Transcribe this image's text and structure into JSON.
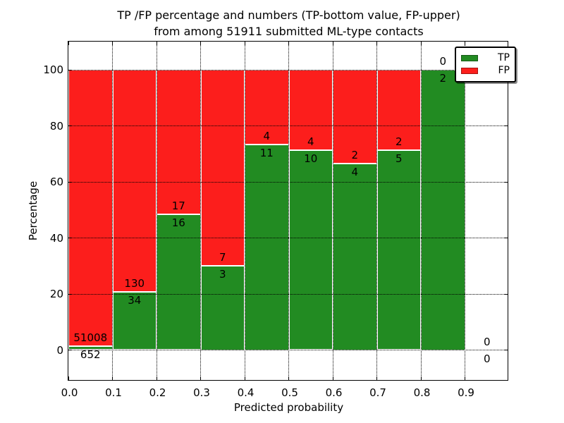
{
  "title": {
    "line1": "TP /FP percentage and numbers (TP-bottom value, FP-upper)",
    "line2": "from among 51911 submitted ML-type contacts"
  },
  "chart_data": {
    "type": "bar",
    "stacked": true,
    "normalized_to_percent": true,
    "title": "TP /FP percentage and numbers (TP-bottom value, FP-upper) from among 51911 submitted ML-type contacts",
    "xlabel": "Predicted probability",
    "ylabel": "Percentage",
    "total_submitted": 51911,
    "x_tick_labels": [
      "0.0",
      "0.1",
      "0.2",
      "0.3",
      "0.4",
      "0.5",
      "0.6",
      "0.7",
      "0.8",
      "0.9"
    ],
    "y_ticks": [
      0,
      20,
      40,
      60,
      80,
      100
    ],
    "y_tick_labels": [
      "0",
      "20",
      "40",
      "60",
      "80",
      "100"
    ],
    "xlim": [
      0.0,
      1.0
    ],
    "ylim": [
      -10.6,
      110.2
    ],
    "grid": "dotted",
    "colors": {
      "tp": "#228b22",
      "fp": "#fc1e1c",
      "bar_edge": "#ffffff"
    },
    "legend": {
      "position": "upper right",
      "entries": [
        {
          "label": "TP",
          "color": "#228b22"
        },
        {
          "label": "FP",
          "color": "#fc1e1c"
        }
      ]
    },
    "bins": [
      {
        "range": [
          0.0,
          0.1
        ],
        "tp": 652,
        "fp": 51008
      },
      {
        "range": [
          0.1,
          0.2
        ],
        "tp": 34,
        "fp": 130
      },
      {
        "range": [
          0.2,
          0.3
        ],
        "tp": 16,
        "fp": 17
      },
      {
        "range": [
          0.3,
          0.4
        ],
        "tp": 3,
        "fp": 7
      },
      {
        "range": [
          0.4,
          0.5
        ],
        "tp": 11,
        "fp": 4
      },
      {
        "range": [
          0.5,
          0.6
        ],
        "tp": 10,
        "fp": 4
      },
      {
        "range": [
          0.6,
          0.7
        ],
        "tp": 4,
        "fp": 2
      },
      {
        "range": [
          0.7,
          0.8
        ],
        "tp": 5,
        "fp": 2
      },
      {
        "range": [
          0.8,
          0.9
        ],
        "tp": 2,
        "fp": 0
      },
      {
        "range": [
          0.9,
          1.0
        ],
        "tp": 0,
        "fp": 0
      }
    ]
  }
}
